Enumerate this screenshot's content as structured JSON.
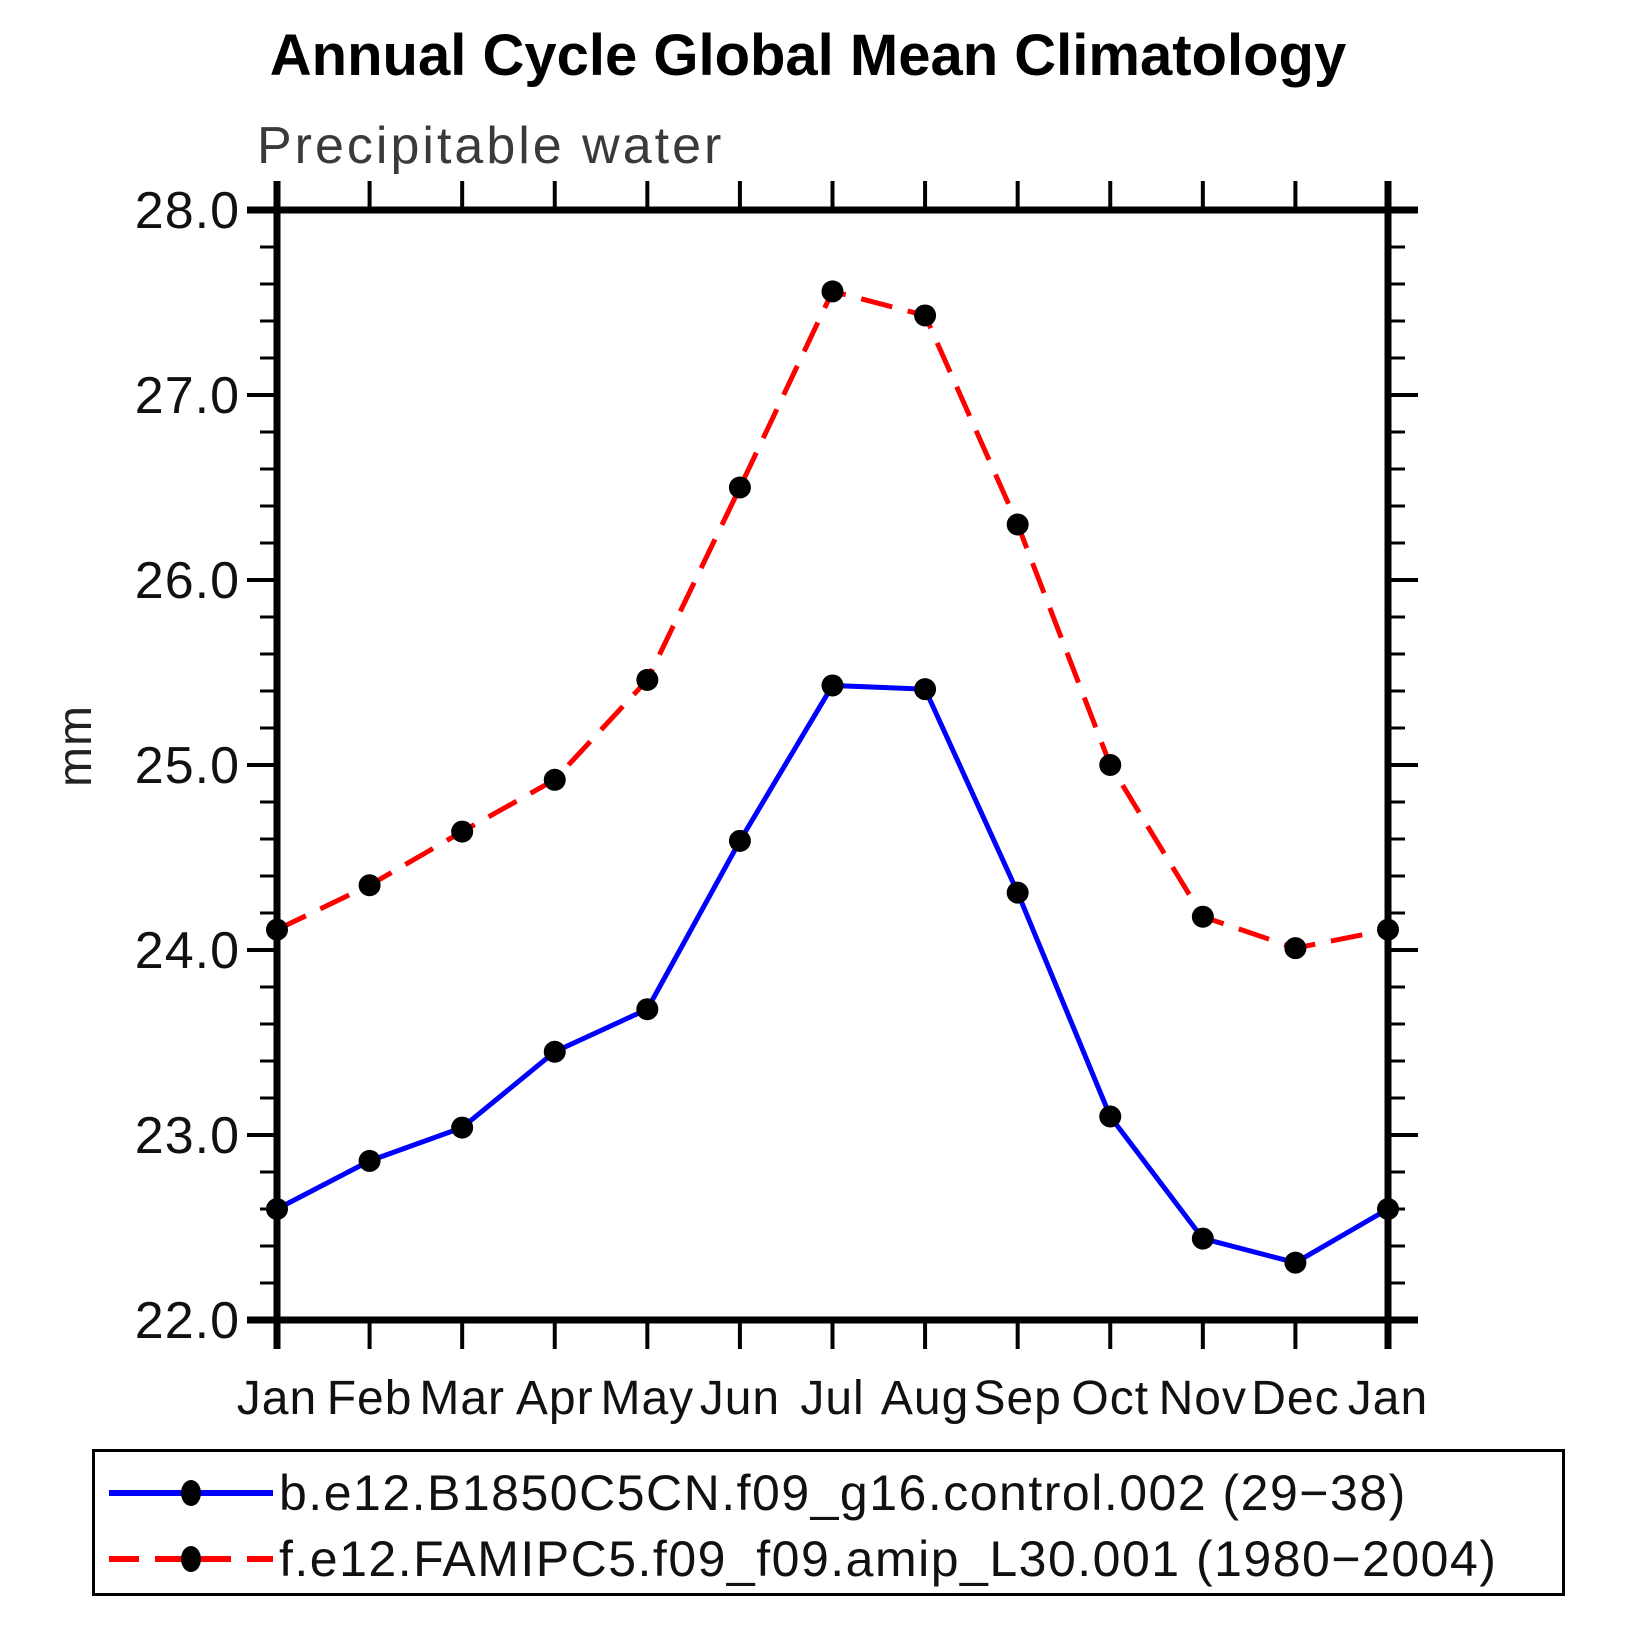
{
  "header": {
    "title": "Annual Cycle Global Mean Climatology",
    "subtitle": "Precipitable water"
  },
  "chart_data": {
    "type": "line",
    "title": "Annual Cycle Global Mean Climatology",
    "subtitle": "Precipitable water",
    "ylabel": "mm",
    "xlabel": "",
    "ylim": [
      22.0,
      28.0
    ],
    "y_major_step": 1.0,
    "y_minor_step": 0.2,
    "y_tick_labels": [
      "22.0",
      "23.0",
      "24.0",
      "25.0",
      "26.0",
      "27.0",
      "28.0"
    ],
    "categories": [
      "Jan",
      "Feb",
      "Mar",
      "Apr",
      "May",
      "Jun",
      "Jul",
      "Aug",
      "Sep",
      "Oct",
      "Nov",
      "Dec",
      "Jan"
    ],
    "grid": false,
    "legend_position": "bottom",
    "series": [
      {
        "name": "b.e12.B1850C5CN.f09_g16.control.002 (29−38)",
        "color": "#0000ff",
        "style": "solid",
        "marker": "circle",
        "marker_color": "#000000",
        "values": [
          22.6,
          22.86,
          23.04,
          23.45,
          23.68,
          24.59,
          25.43,
          25.41,
          24.31,
          23.1,
          22.44,
          22.31,
          22.6
        ]
      },
      {
        "name": "f.e12.FAMIPC5.f09_f09.amip_L30.001 (1980−2004)",
        "color": "#ff0000",
        "style": "dashed",
        "marker": "circle",
        "marker_color": "#000000",
        "values": [
          24.11,
          24.35,
          24.64,
          24.92,
          25.46,
          26.5,
          27.56,
          27.43,
          26.3,
          25.0,
          24.18,
          24.01,
          24.11
        ]
      }
    ]
  },
  "colors": {
    "axis": "#000000",
    "tick_label": "#111111",
    "title": "#000000",
    "subtitle": "#3a3a3a"
  }
}
